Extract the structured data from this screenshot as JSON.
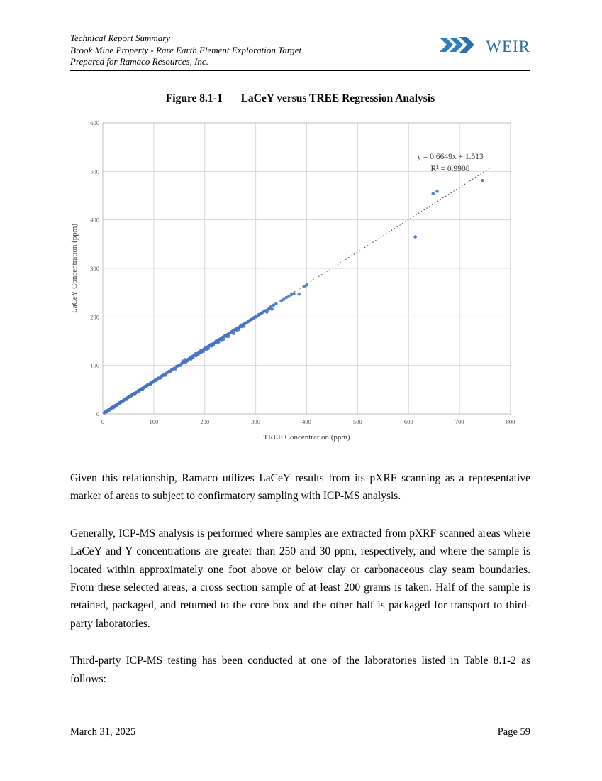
{
  "header": {
    "line1": "Technical Report Summary",
    "line2": "Brook Mine Property - Rare Earth Element Exploration Target",
    "line3": "Prepared for Ramaco Resources, Inc.",
    "logo_text": "WEIR"
  },
  "figure": {
    "label": "Figure 8.1-1",
    "title": "LaCeY versus TREE Regression Analysis"
  },
  "chart_data": {
    "type": "scatter",
    "title": "LaCeY versus TREE Regression Analysis",
    "xlabel": "TREE Concentration  (ppm)",
    "ylabel": "LaCeY Concentration (ppm)",
    "xlim": [
      0,
      800
    ],
    "ylim": [
      0,
      600
    ],
    "xticks": [
      0,
      100,
      200,
      300,
      400,
      500,
      600,
      700,
      800
    ],
    "yticks": [
      0,
      100,
      200,
      300,
      400,
      500,
      600
    ],
    "grid": true,
    "legend": "none",
    "point_color": "#4472C4",
    "annotation": {
      "line1": "y = 0.6649x + 1.513",
      "line2": "R² = 0.9908"
    },
    "trendline": {
      "slope": 0.6649,
      "intercept": 1.513,
      "x_start": 0,
      "x_end": 760,
      "style": "dotted"
    },
    "points": [
      [
        3,
        2
      ],
      [
        5,
        4
      ],
      [
        6,
        4
      ],
      [
        7,
        5
      ],
      [
        8,
        6
      ],
      [
        9,
        7
      ],
      [
        10,
        7
      ],
      [
        11,
        8
      ],
      [
        12,
        9
      ],
      [
        13,
        8
      ],
      [
        14,
        10
      ],
      [
        15,
        11
      ],
      [
        16,
        10
      ],
      [
        17,
        12
      ],
      [
        18,
        13
      ],
      [
        19,
        14
      ],
      [
        20,
        14
      ],
      [
        21,
        13
      ],
      [
        22,
        15
      ],
      [
        23,
        16
      ],
      [
        24,
        17
      ],
      [
        25,
        17
      ],
      [
        26,
        18
      ],
      [
        27,
        19
      ],
      [
        28,
        18
      ],
      [
        29,
        20
      ],
      [
        30,
        21
      ],
      [
        31,
        21
      ],
      [
        32,
        22
      ],
      [
        33,
        23
      ],
      [
        34,
        23
      ],
      [
        35,
        24
      ],
      [
        36,
        25
      ],
      [
        37,
        25
      ],
      [
        38,
        26
      ],
      [
        40,
        27
      ],
      [
        41,
        28
      ],
      [
        42,
        29
      ],
      [
        44,
        30
      ],
      [
        45,
        31
      ],
      [
        46,
        32
      ],
      [
        47,
        30
      ],
      [
        48,
        33
      ],
      [
        50,
        34
      ],
      [
        51,
        35
      ],
      [
        52,
        35
      ],
      [
        53,
        36
      ],
      [
        55,
        37
      ],
      [
        56,
        38
      ],
      [
        57,
        39
      ],
      [
        58,
        40
      ],
      [
        60,
        41
      ],
      [
        61,
        42
      ],
      [
        62,
        40
      ],
      [
        64,
        43
      ],
      [
        65,
        44
      ],
      [
        66,
        45
      ],
      [
        68,
        46
      ],
      [
        69,
        47
      ],
      [
        70,
        47
      ],
      [
        71,
        48
      ],
      [
        72,
        49
      ],
      [
        74,
        50
      ],
      [
        75,
        51
      ],
      [
        76,
        52
      ],
      [
        78,
        51
      ],
      [
        79,
        53
      ],
      [
        80,
        54
      ],
      [
        82,
        56
      ],
      [
        83,
        56
      ],
      [
        84,
        57
      ],
      [
        85,
        57
      ],
      [
        87,
        59
      ],
      [
        88,
        59
      ],
      [
        89,
        60
      ],
      [
        90,
        61
      ],
      [
        92,
        62
      ],
      [
        93,
        60
      ],
      [
        94,
        63
      ],
      [
        95,
        64
      ],
      [
        97,
        65
      ],
      [
        98,
        66
      ],
      [
        99,
        67
      ],
      [
        100,
        67
      ],
      [
        103,
        70
      ],
      [
        105,
        69
      ],
      [
        108,
        73
      ],
      [
        110,
        74
      ],
      [
        113,
        74
      ],
      [
        115,
        78
      ],
      [
        118,
        79
      ],
      [
        120,
        81
      ],
      [
        123,
        80
      ],
      [
        125,
        84
      ],
      [
        128,
        86
      ],
      [
        130,
        88
      ],
      [
        133,
        87
      ],
      [
        135,
        91
      ],
      [
        138,
        92
      ],
      [
        140,
        94
      ],
      [
        143,
        93
      ],
      [
        145,
        98
      ],
      [
        148,
        99
      ],
      [
        150,
        101
      ],
      [
        152,
        100
      ],
      [
        155,
        104
      ],
      [
        157,
        109
      ],
      [
        158,
        106
      ],
      [
        160,
        107
      ],
      [
        162,
        112
      ],
      [
        163,
        107
      ],
      [
        165,
        111
      ],
      [
        167,
        110
      ],
      [
        168,
        113
      ],
      [
        170,
        114
      ],
      [
        172,
        117
      ],
      [
        173,
        113
      ],
      [
        175,
        118
      ],
      [
        177,
        116
      ],
      [
        178,
        120
      ],
      [
        180,
        121
      ],
      [
        182,
        124
      ],
      [
        183,
        120
      ],
      [
        185,
        124
      ],
      [
        187,
        122
      ],
      [
        188,
        126
      ],
      [
        190,
        127
      ],
      [
        192,
        130
      ],
      [
        193,
        127
      ],
      [
        195,
        131
      ],
      [
        197,
        129
      ],
      [
        198,
        133
      ],
      [
        200,
        134
      ],
      [
        202,
        137
      ],
      [
        203,
        133
      ],
      [
        205,
        138
      ],
      [
        207,
        135
      ],
      [
        208,
        140
      ],
      [
        210,
        141
      ],
      [
        212,
        143
      ],
      [
        213,
        140
      ],
      [
        215,
        144
      ],
      [
        217,
        142
      ],
      [
        218,
        146
      ],
      [
        220,
        147
      ],
      [
        222,
        150
      ],
      [
        223,
        147
      ],
      [
        225,
        151
      ],
      [
        227,
        148
      ],
      [
        228,
        153
      ],
      [
        230,
        154
      ],
      [
        232,
        156
      ],
      [
        233,
        153
      ],
      [
        235,
        158
      ],
      [
        237,
        154
      ],
      [
        238,
        160
      ],
      [
        240,
        161
      ],
      [
        242,
        162
      ],
      [
        243,
        160
      ],
      [
        245,
        164
      ],
      [
        247,
        160
      ],
      [
        248,
        166
      ],
      [
        250,
        167
      ],
      [
        252,
        169
      ],
      [
        253,
        167
      ],
      [
        255,
        171
      ],
      [
        257,
        166
      ],
      [
        258,
        173
      ],
      [
        260,
        174
      ],
      [
        262,
        176
      ],
      [
        263,
        173
      ],
      [
        265,
        177
      ],
      [
        267,
        174
      ],
      [
        268,
        179
      ],
      [
        270,
        181
      ],
      [
        272,
        183
      ],
      [
        273,
        180
      ],
      [
        275,
        184
      ],
      [
        277,
        181
      ],
      [
        278,
        186
      ],
      [
        280,
        187
      ],
      [
        282,
        188
      ],
      [
        285,
        190
      ],
      [
        287,
        192
      ],
      [
        290,
        194
      ],
      [
        292,
        195
      ],
      [
        295,
        197
      ],
      [
        297,
        199
      ],
      [
        300,
        200
      ],
      [
        302,
        201
      ],
      [
        305,
        204
      ],
      [
        307,
        205
      ],
      [
        310,
        207
      ],
      [
        312,
        208
      ],
      [
        315,
        210
      ],
      [
        317,
        212
      ],
      [
        320,
        213
      ],
      [
        322,
        210
      ],
      [
        325,
        215
      ],
      [
        327,
        218
      ],
      [
        330,
        221
      ],
      [
        332,
        216
      ],
      [
        335,
        224
      ],
      [
        340,
        227
      ],
      [
        350,
        233
      ],
      [
        355,
        236
      ],
      [
        360,
        240
      ],
      [
        365,
        242
      ],
      [
        370,
        246
      ],
      [
        375,
        248
      ],
      [
        385,
        247
      ],
      [
        395,
        263
      ],
      [
        400,
        266
      ],
      [
        613,
        365
      ],
      [
        648,
        454
      ],
      [
        656,
        459
      ],
      [
        745,
        481
      ]
    ]
  },
  "body": {
    "paragraph1": "Given this relationship, Ramaco utilizes LaCeY results from its pXRF scanning as a representative marker of areas to subject to confirmatory sampling with ICP-MS analysis.",
    "paragraph2": "Generally, ICP-MS analysis is performed where samples are extracted from pXRF scanned areas where LaCeY and Y concentrations are greater than 250 and 30 ppm, respectively, and where the sample is located within approximately one foot above or below clay or carbonaceous clay seam boundaries.  From these selected areas, a cross section sample of at least 200 grams is taken.  Half of the sample is retained, packaged, and returned to the core box and the other half is packaged for transport to third-party laboratories.",
    "paragraph3": "Third-party ICP-MS testing has been conducted at one of the laboratories listed in Table 8.1-2 as follows:"
  },
  "footer": {
    "date": "March 31, 2025",
    "page": "Page 59"
  },
  "colors": {
    "logo_chevron": "#2e7fc1",
    "logo_text": "#2b6ca3",
    "point": "#4472C4",
    "gridline": "#d9d9d9",
    "plot_border": "#bfbfbf"
  }
}
